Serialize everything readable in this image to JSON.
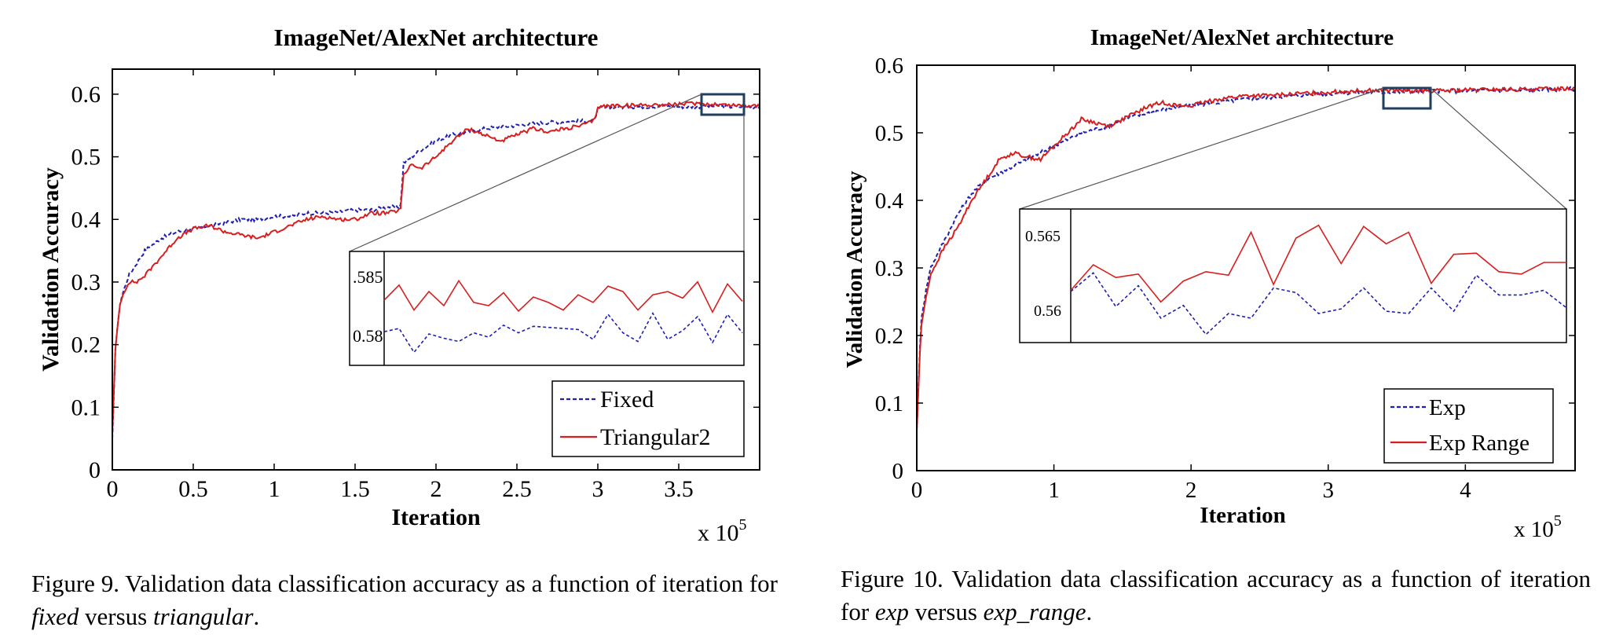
{
  "chart_data": [
    {
      "type": "line",
      "title": "ImageNet/AlexNet architecture",
      "xlabel": "Iteration",
      "ylabel": "Validation Accuracy",
      "x_multiplier": "x 10",
      "x_multiplier_exp": "5",
      "xlim": [
        0,
        4.0
      ],
      "ylim": [
        0,
        0.64
      ],
      "xticks": [
        "0",
        "0.5",
        "1",
        "1.5",
        "2",
        "2.5",
        "3",
        "3.5"
      ],
      "xtick_values": [
        0,
        0.5,
        1,
        1.5,
        2,
        2.5,
        3,
        3.5
      ],
      "yticks": [
        "0",
        "0.1",
        "0.2",
        "0.3",
        "0.4",
        "0.5",
        "0.6"
      ],
      "ytick_values": [
        0,
        0.1,
        0.2,
        0.3,
        0.4,
        0.5,
        0.6
      ],
      "legend": "bottom-right",
      "series": [
        {
          "name": "Fixed",
          "color": "#1f1fb0",
          "style": "dashed",
          "x": [
            0,
            0.02,
            0.05,
            0.1,
            0.15,
            0.2,
            0.3,
            0.4,
            0.5,
            0.6,
            0.7,
            0.8,
            0.9,
            1.0,
            1.1,
            1.2,
            1.3,
            1.4,
            1.5,
            1.6,
            1.7,
            1.78,
            1.8,
            1.85,
            1.9,
            2.0,
            2.1,
            2.2,
            2.3,
            2.4,
            2.5,
            2.6,
            2.7,
            2.8,
            2.9,
            2.98,
            3.0,
            3.1,
            3.2,
            3.3,
            3.4,
            3.5,
            3.6,
            3.7,
            3.8,
            3.9,
            4.0
          ],
          "y": [
            0.05,
            0.2,
            0.27,
            0.31,
            0.33,
            0.35,
            0.37,
            0.38,
            0.385,
            0.39,
            0.395,
            0.4,
            0.4,
            0.405,
            0.405,
            0.41,
            0.41,
            0.412,
            0.415,
            0.415,
            0.42,
            0.42,
            0.49,
            0.5,
            0.51,
            0.525,
            0.535,
            0.54,
            0.545,
            0.548,
            0.55,
            0.553,
            0.555,
            0.556,
            0.557,
            0.558,
            0.577,
            0.579,
            0.58,
            0.58,
            0.581,
            0.58,
            0.58,
            0.581,
            0.58,
            0.58,
            0.58
          ]
        },
        {
          "name": "Triangular2",
          "color": "#d81e1e",
          "style": "solid",
          "x": [
            0,
            0.02,
            0.05,
            0.1,
            0.15,
            0.2,
            0.3,
            0.4,
            0.5,
            0.6,
            0.7,
            0.8,
            0.9,
            1.0,
            1.1,
            1.2,
            1.3,
            1.4,
            1.5,
            1.6,
            1.7,
            1.78,
            1.8,
            1.85,
            1.9,
            2.0,
            2.1,
            2.2,
            2.3,
            2.4,
            2.5,
            2.6,
            2.7,
            2.8,
            2.9,
            2.98,
            3.0,
            3.1,
            3.2,
            3.3,
            3.4,
            3.5,
            3.6,
            3.7,
            3.8,
            3.9,
            4.0
          ],
          "y": [
            0.06,
            0.2,
            0.27,
            0.3,
            0.3,
            0.31,
            0.34,
            0.37,
            0.385,
            0.39,
            0.38,
            0.375,
            0.37,
            0.38,
            0.39,
            0.4,
            0.405,
            0.4,
            0.4,
            0.41,
            0.41,
            0.415,
            0.47,
            0.49,
            0.48,
            0.5,
            0.525,
            0.545,
            0.535,
            0.525,
            0.535,
            0.545,
            0.54,
            0.545,
            0.55,
            0.558,
            0.58,
            0.582,
            0.582,
            0.583,
            0.583,
            0.584,
            0.585,
            0.584,
            0.583,
            0.582,
            0.582
          ]
        }
      ],
      "inset": {
        "ylabels": [
          ".585",
          "0.58"
        ],
        "ytick_values": [
          0.585,
          0.58
        ],
        "ylim": [
          0.5775,
          0.588
        ],
        "series": [
          {
            "name": "Triangular2",
            "color": "#d81e1e",
            "style": "solid",
            "values": [
              0.5835,
              0.5849,
              0.5826,
              0.5843,
              0.583,
              0.5853,
              0.5833,
              0.583,
              0.5842,
              0.5825,
              0.5838,
              0.5833,
              0.5826,
              0.584,
              0.5833,
              0.5848,
              0.5843,
              0.5826,
              0.584,
              0.5843,
              0.5837,
              0.5852,
              0.5824,
              0.585,
              0.5834
            ]
          },
          {
            "name": "Fixed",
            "color": "#1f1fb0",
            "style": "dashed",
            "values": [
              0.5806,
              0.5809,
              0.5787,
              0.5804,
              0.58,
              0.5797,
              0.5805,
              0.5801,
              0.5812,
              0.5805,
              0.5811,
              0.581,
              0.5809,
              0.5808,
              0.5799,
              0.5822,
              0.5805,
              0.5797,
              0.5823,
              0.5799,
              0.5807,
              0.582,
              0.5796,
              0.5822,
              0.5805
            ]
          }
        ]
      }
    },
    {
      "type": "line",
      "title": "ImageNet/AlexNet architecture",
      "xlabel": "Iteration",
      "ylabel": "Validation Accuracy",
      "x_multiplier": "x 10",
      "x_multiplier_exp": "5",
      "xlim": [
        0,
        4.8
      ],
      "ylim": [
        0,
        0.6
      ],
      "xticks": [
        "0",
        "1",
        "2",
        "3",
        "4"
      ],
      "xtick_values": [
        0,
        1,
        2,
        3,
        4
      ],
      "yticks": [
        "0",
        "0.1",
        "0.2",
        "0.3",
        "0.4",
        "0.5",
        "0.6"
      ],
      "ytick_values": [
        0,
        0.1,
        0.2,
        0.3,
        0.4,
        0.5,
        0.6
      ],
      "legend": "bottom-right",
      "series": [
        {
          "name": "Exp",
          "color": "#1f1fb0",
          "style": "dashed",
          "x": [
            0,
            0.03,
            0.07,
            0.1,
            0.15,
            0.2,
            0.3,
            0.4,
            0.5,
            0.6,
            0.7,
            0.8,
            0.9,
            1.0,
            1.1,
            1.2,
            1.3,
            1.4,
            1.5,
            1.6,
            1.7,
            1.8,
            1.9,
            2.0,
            2.2,
            2.4,
            2.6,
            2.8,
            3.0,
            3.2,
            3.4,
            3.6,
            3.8,
            4.0,
            4.2,
            4.4,
            4.6,
            4.8
          ],
          "y": [
            0.06,
            0.22,
            0.27,
            0.3,
            0.32,
            0.34,
            0.38,
            0.41,
            0.43,
            0.44,
            0.45,
            0.46,
            0.47,
            0.48,
            0.49,
            0.5,
            0.505,
            0.51,
            0.52,
            0.525,
            0.53,
            0.535,
            0.538,
            0.54,
            0.545,
            0.55,
            0.553,
            0.556,
            0.558,
            0.56,
            0.56,
            0.561,
            0.562,
            0.562,
            0.563,
            0.563,
            0.564,
            0.565
          ]
        },
        {
          "name": "Exp Range",
          "color": "#d81e1e",
          "style": "solid",
          "x": [
            0,
            0.03,
            0.07,
            0.1,
            0.15,
            0.2,
            0.3,
            0.4,
            0.5,
            0.6,
            0.7,
            0.8,
            0.9,
            1.0,
            1.1,
            1.2,
            1.3,
            1.4,
            1.5,
            1.6,
            1.7,
            1.8,
            1.9,
            2.0,
            2.2,
            2.4,
            2.6,
            2.8,
            3.0,
            3.2,
            3.4,
            3.6,
            3.8,
            4.0,
            4.2,
            4.4,
            4.6,
            4.8
          ],
          "y": [
            0.06,
            0.21,
            0.26,
            0.29,
            0.31,
            0.33,
            0.36,
            0.4,
            0.43,
            0.46,
            0.47,
            0.465,
            0.46,
            0.48,
            0.5,
            0.52,
            0.515,
            0.51,
            0.52,
            0.53,
            0.54,
            0.545,
            0.54,
            0.54,
            0.55,
            0.555,
            0.555,
            0.558,
            0.56,
            0.562,
            0.563,
            0.562,
            0.562,
            0.563,
            0.564,
            0.564,
            0.565,
            0.566
          ]
        }
      ],
      "inset": {
        "ylabels": [
          "0.565",
          "0.56"
        ],
        "ytick_values": [
          0.565,
          0.56
        ],
        "ylim": [
          0.5577,
          0.5692
        ],
        "series": [
          {
            "name": "Exp Range",
            "color": "#d81e1e",
            "style": "solid",
            "values": [
              0.5622,
              0.5644,
              0.5633,
              0.5636,
              0.5612,
              0.563,
              0.5638,
              0.5635,
              0.5672,
              0.5627,
              0.5667,
              0.5678,
              0.5645,
              0.5677,
              0.5662,
              0.5672,
              0.5628,
              0.5653,
              0.5654,
              0.5638,
              0.5636,
              0.5646,
              0.5646
            ]
          },
          {
            "name": "Exp",
            "color": "#1f1fb0",
            "style": "dashed",
            "values": [
              0.5621,
              0.5637,
              0.5608,
              0.5626,
              0.5598,
              0.5609,
              0.5584,
              0.5602,
              0.5598,
              0.5624,
              0.562,
              0.5602,
              0.5606,
              0.5624,
              0.5604,
              0.5602,
              0.5624,
              0.5604,
              0.5635,
              0.5618,
              0.5618,
              0.5622,
              0.5607
            ]
          }
        ]
      }
    }
  ],
  "captions": {
    "fig9": {
      "prefix": "Figure 9. Validation data classification accuracy as a function of iteration for ",
      "term1": "fixed",
      "middle": " versus ",
      "term2": "triangular",
      "suffix": "."
    },
    "fig10": {
      "prefix": "Figure 10. Validation data classification accuracy as a function of iteration for ",
      "term1": "exp",
      "middle": " versus ",
      "term2": "exp_range",
      "suffix": "."
    }
  }
}
